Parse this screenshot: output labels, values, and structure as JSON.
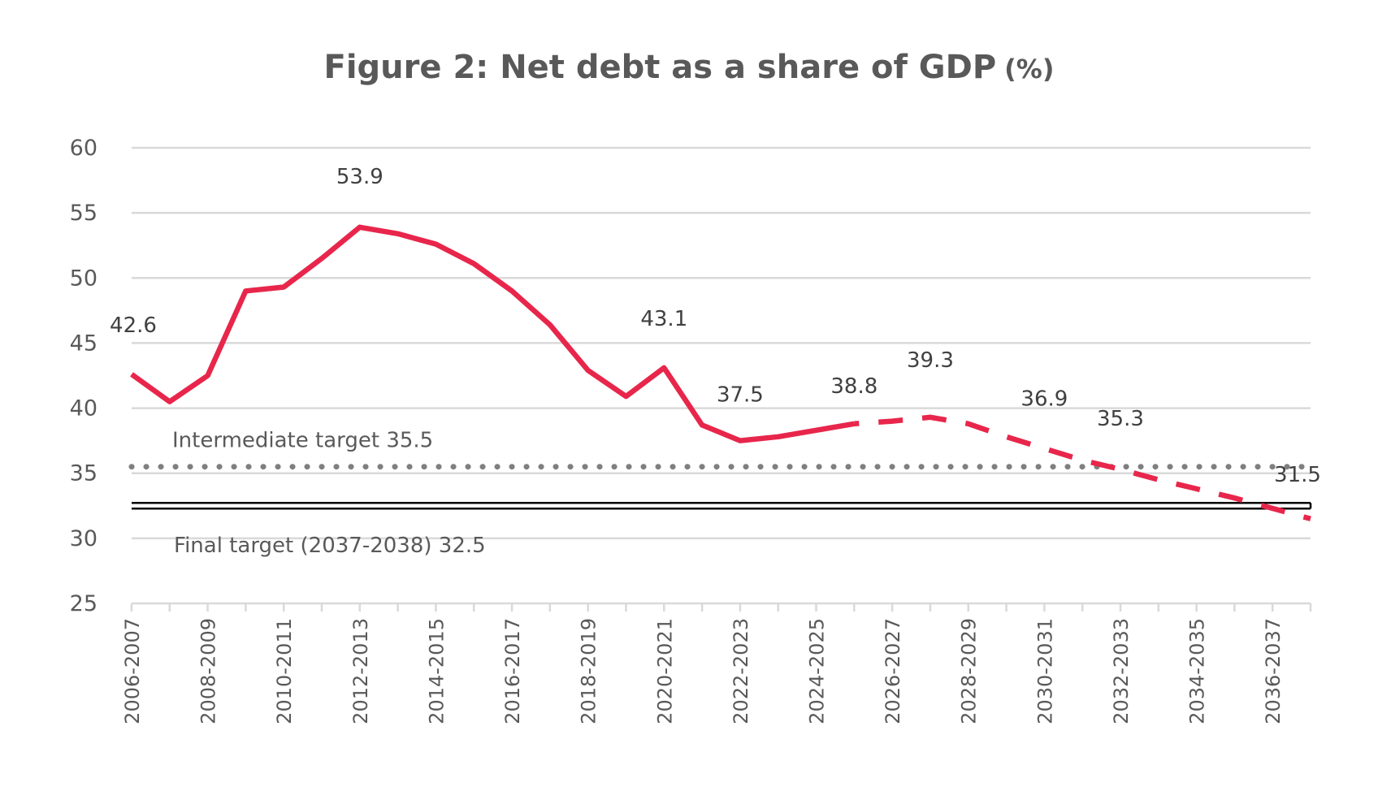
{
  "chart_data": {
    "type": "line",
    "title": "Figure 2: Net debt as a share of GDP",
    "title_suffix": "(%)",
    "xlabel": "",
    "ylabel": "",
    "ylim": [
      25,
      60
    ],
    "yticks": [
      25,
      30,
      35,
      40,
      45,
      50,
      55,
      60
    ],
    "grid": true,
    "categories": [
      "2006-2007",
      "2007-2008",
      "2008-2009",
      "2009-2010",
      "2010-2011",
      "2011-2012",
      "2012-2013",
      "2013-2014",
      "2014-2015",
      "2015-2016",
      "2016-2017",
      "2017-2018",
      "2018-2019",
      "2019-2020",
      "2020-2021",
      "2021-2022",
      "2022-2023",
      "2023-2024",
      "2024-2025",
      "2025-2026",
      "2026-2027",
      "2027-2028",
      "2028-2029",
      "2029-2030",
      "2030-2031",
      "2031-2032",
      "2032-2033",
      "2033-2034",
      "2034-2035",
      "2035-2036",
      "2036-2037",
      "2037-2038"
    ],
    "xtick_labels": [
      "2006-2007",
      "2008-2009",
      "2010-2011",
      "2012-2013",
      "2014-2015",
      "2016-2017",
      "2018-2019",
      "2020-2021",
      "2022-2023",
      "2024-2025",
      "2026-2027",
      "2028-2029",
      "2030-2031",
      "2032-2033",
      "2034-2035",
      "2036-2037"
    ],
    "series": [
      {
        "color": "#e8264b",
        "values": [
          42.6,
          40.5,
          42.5,
          49.0,
          49.3,
          51.5,
          53.9,
          53.4,
          52.6,
          51.1,
          49.0,
          46.4,
          42.9,
          40.9,
          43.1,
          38.7,
          37.5,
          37.8,
          38.3,
          38.8,
          39.0,
          39.3,
          38.8,
          37.8,
          36.9,
          36.0,
          35.3,
          34.5,
          33.8,
          33.1,
          32.3,
          31.5
        ],
        "actual_through": "2025-2026",
        "projection_style": "dashed",
        "labels": [
          {
            "category": "2006-2007",
            "text": "42.6"
          },
          {
            "category": "2012-2013",
            "text": "53.9"
          },
          {
            "category": "2020-2021",
            "text": "43.1"
          },
          {
            "category": "2022-2023",
            "text": "37.5"
          },
          {
            "category": "2025-2026",
            "text": "38.8"
          },
          {
            "category": "2027-2028",
            "text": "39.3"
          },
          {
            "category": "2030-2031",
            "text": "36.9"
          },
          {
            "category": "2032-2033",
            "text": "35.3"
          },
          {
            "category": "2037-2038",
            "text": "31.5"
          }
        ]
      }
    ],
    "reference_lines": [
      {
        "value": 35.5,
        "label": "Intermediate target 35.5",
        "style": "dotted",
        "color": "#7f7f7f"
      },
      {
        "value": 32.5,
        "label": "Final target (2037-2038) 32.5",
        "style": "double",
        "color": "#000000"
      }
    ],
    "colors": {
      "grid": "#d9d9d9",
      "text": "#595959"
    }
  }
}
